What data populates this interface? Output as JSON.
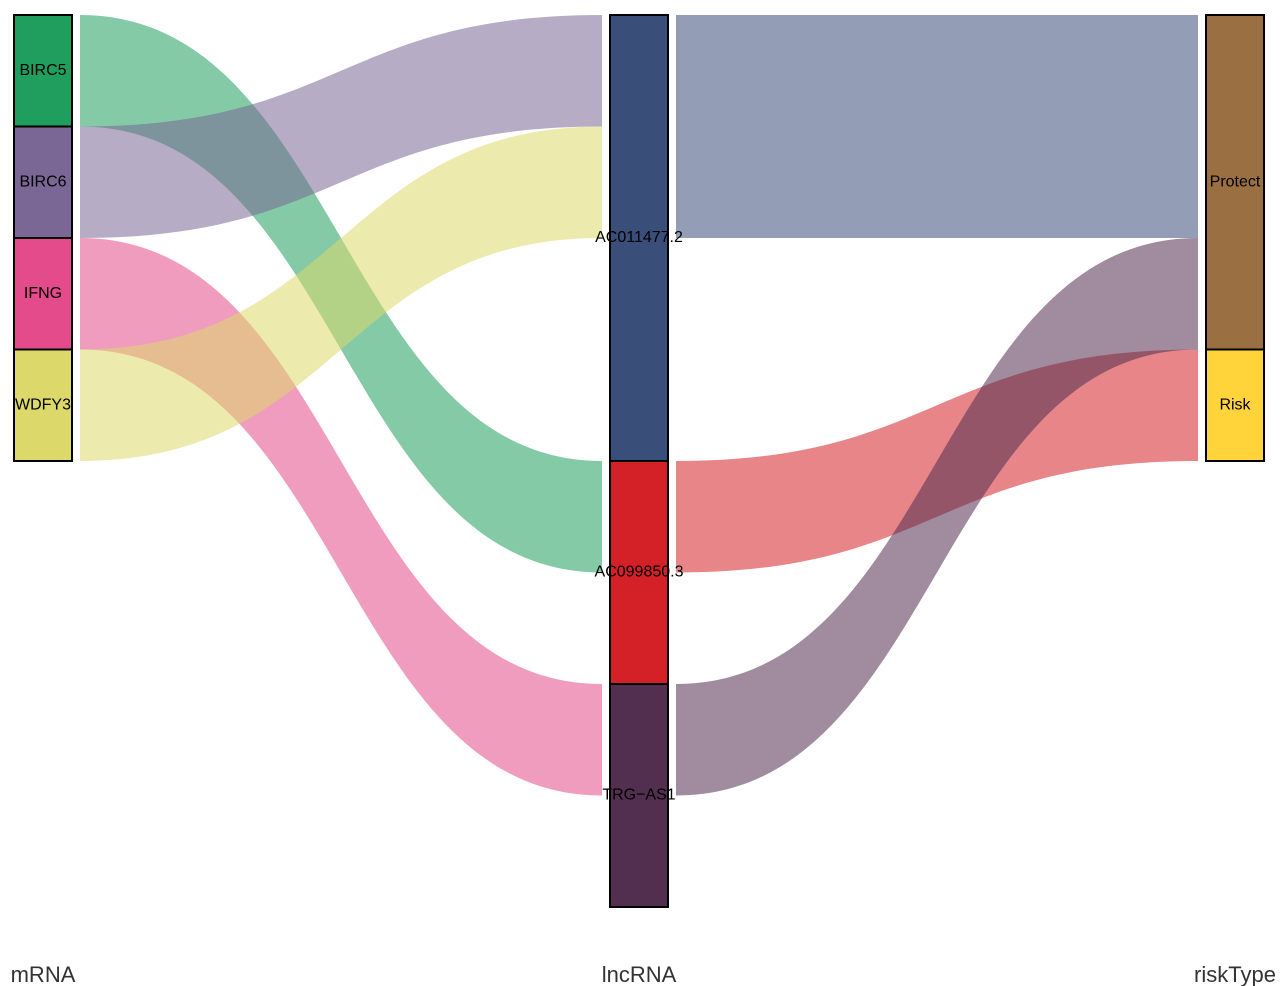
{
  "chart_data": {
    "type": "alluvial",
    "axes": [
      {
        "label": "mRNA",
        "nodes": [
          {
            "name": "BIRC5",
            "color": "#1f9e5d"
          },
          {
            "name": "BIRC6",
            "color": "#7a6795"
          },
          {
            "name": "IFNG",
            "color": "#e44b8a"
          },
          {
            "name": "WDFY3",
            "color": "#dcd86a"
          }
        ]
      },
      {
        "label": "lncRNA",
        "nodes": [
          {
            "name": "AC011477.2",
            "color": "#3a4e7a"
          },
          {
            "name": "AC099850.3",
            "color": "#d42027"
          },
          {
            "name": "TRG−AS1",
            "color": "#522e4f"
          }
        ]
      },
      {
        "label": "riskType",
        "nodes": [
          {
            "name": "Protect",
            "color": "#9a6f41"
          },
          {
            "name": "Risk",
            "color": "#ffd43b"
          }
        ]
      }
    ],
    "flows": [
      {
        "from_axis": 0,
        "from": "BIRC5",
        "to": "AC099850.3",
        "value": 1,
        "color": "#1f9e5d"
      },
      {
        "from_axis": 0,
        "from": "BIRC6",
        "to": "AC011477.2",
        "value": 1,
        "color": "#7a6795"
      },
      {
        "from_axis": 0,
        "from": "IFNG",
        "to": "TRG−AS1",
        "value": 1,
        "color": "#e44b8a"
      },
      {
        "from_axis": 0,
        "from": "WDFY3",
        "to": "AC011477.2",
        "value": 1,
        "color": "#dcd86a"
      },
      {
        "from_axis": 1,
        "from": "AC011477.2",
        "to": "Protect",
        "value": 2,
        "color": "#3a4e7a"
      },
      {
        "from_axis": 1,
        "from": "AC099850.3",
        "to": "Risk",
        "value": 1,
        "color": "#d42027"
      },
      {
        "from_axis": 1,
        "from": "TRG−AS1",
        "to": "Protect",
        "value": 1,
        "color": "#522e4f"
      }
    ]
  }
}
